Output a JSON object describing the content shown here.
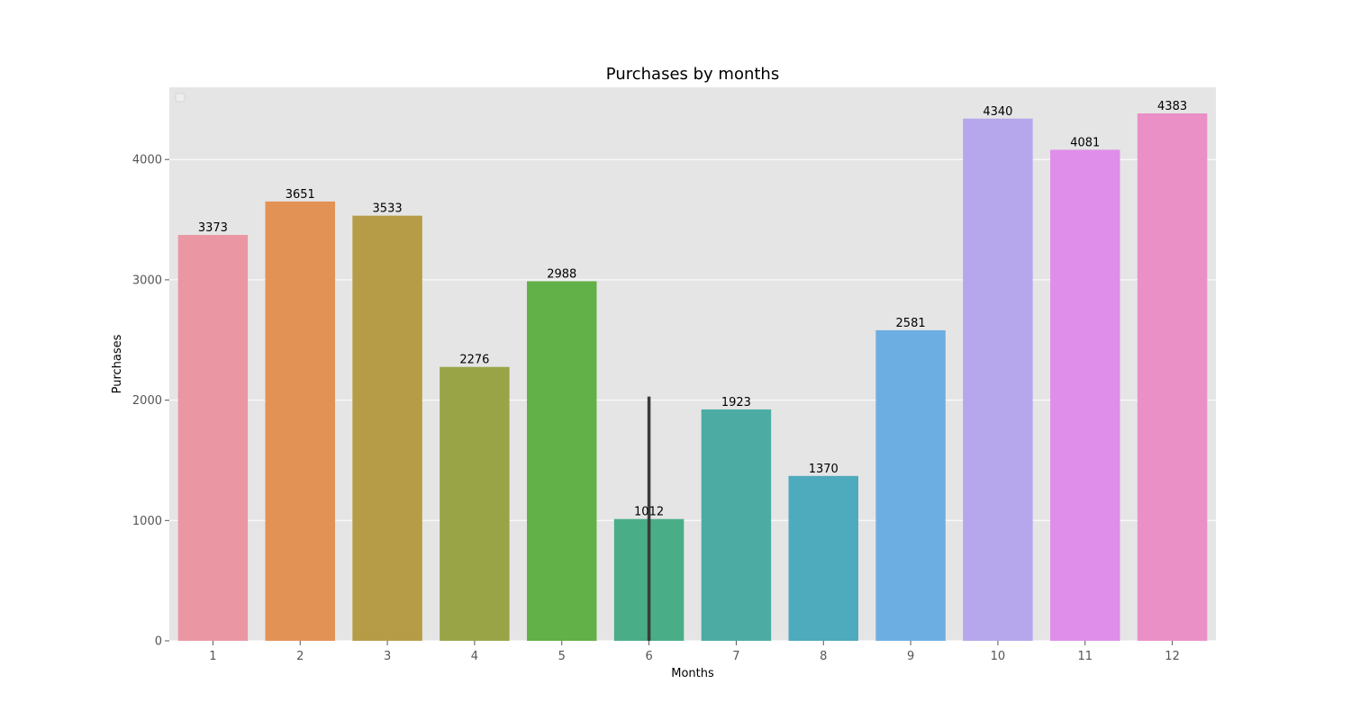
{
  "chart_data": {
    "type": "bar",
    "title": "Purchases by months",
    "xlabel": "Months",
    "ylabel": "Purchases",
    "categories": [
      "1",
      "2",
      "3",
      "4",
      "5",
      "6",
      "7",
      "8",
      "9",
      "10",
      "11",
      "12"
    ],
    "values": [
      3373,
      3651,
      3533,
      2276,
      2988,
      1012,
      1923,
      1370,
      2581,
      4340,
      4081,
      4383
    ],
    "value_labels": [
      "3373",
      "3651",
      "3533",
      "2276",
      "2988",
      "1012",
      "1923",
      "1370",
      "2581",
      "4340",
      "4081",
      "4383"
    ],
    "error_bars": [
      {
        "category": "6",
        "low": 0,
        "high": 2030
      }
    ],
    "ylim": [
      0,
      4600
    ],
    "yticks": [
      0,
      1000,
      2000,
      3000,
      4000
    ],
    "ytick_labels": [
      "0",
      "1000",
      "2000",
      "3000",
      "4000"
    ],
    "grid": true,
    "legend": "top-left (empty)",
    "colors": [
      "#ea96a3",
      "#e39255",
      "#b79c48",
      "#99a447",
      "#62b048",
      "#49ae87",
      "#4caca4",
      "#4eaabd",
      "#6caee1",
      "#b6a7ec",
      "#df8ee9",
      "#ea90c6"
    ],
    "plot_background": "#e5e5e5",
    "error_bar_color": "#3b3b3b"
  }
}
